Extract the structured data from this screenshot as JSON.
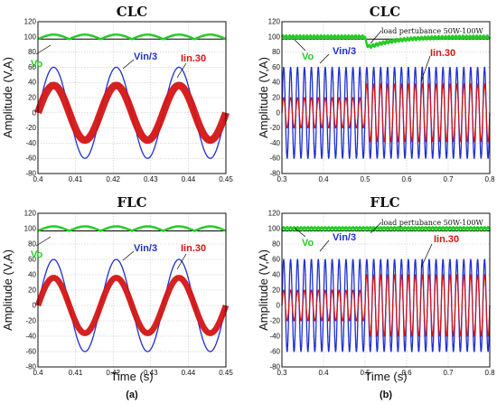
{
  "figure": {
    "caption_a": "(a)",
    "caption_b": "(b)"
  },
  "colors": {
    "vo": "#22cc22",
    "vin": "#1f30d0",
    "iin": "#d41515",
    "ref": "#000000"
  },
  "chart_data": [
    {
      "id": "a-clc",
      "type": "line",
      "title": "CLC",
      "xlabel": "",
      "ylabel": "Amplitude (V,A)",
      "xlim": [
        0.4,
        0.45
      ],
      "ylim": [
        -80,
        120
      ],
      "xticks": [
        "0.4",
        "0.41",
        "0.42",
        "0.43",
        "0.44",
        "0.45"
      ],
      "yticks": [
        "-80",
        "-60",
        "-40",
        "-20",
        "0",
        "20",
        "40",
        "60",
        "80",
        "100",
        "120"
      ],
      "grid": true,
      "series": [
        {
          "name": "Vo",
          "kind": "dc-ripple",
          "mean": 100,
          "ripple": 3,
          "freq_hz": 120
        },
        {
          "name": "Vin/3",
          "kind": "sine",
          "amplitude": 60,
          "freq_hz": 60
        },
        {
          "name": "Iin.30",
          "kind": "sine-band",
          "amplitude": 36,
          "band": 4,
          "freq_hz": 60
        }
      ],
      "annotations": {
        "vo": "Vo",
        "vin": "Vin/3",
        "iin": "Iin.30"
      }
    },
    {
      "id": "b-clc",
      "type": "line",
      "title": "CLC",
      "xlabel": "",
      "ylabel": "Amplitude (V,A)",
      "xlim": [
        0.3,
        0.8
      ],
      "ylim": [
        -80,
        120
      ],
      "xticks": [
        "0.3",
        "0.4",
        "0.5",
        "0.6",
        "0.7",
        "0.8"
      ],
      "yticks": [
        "-80",
        "-60",
        "-40",
        "-20",
        "0",
        "20",
        "40",
        "60",
        "80",
        "100",
        "120"
      ],
      "grid": true,
      "disturbance_time": 0.5,
      "series": [
        {
          "name": "Vo",
          "kind": "dc-dip",
          "mean": 100,
          "ripple": 2,
          "dip_to": 84,
          "recovery_s": 0.25
        },
        {
          "name": "Vin/3",
          "kind": "sine",
          "amplitude": 60,
          "freq_hz": 60
        },
        {
          "name": "Iin.30",
          "kind": "sine-step",
          "amplitude_before": 20,
          "amplitude_after": 38,
          "freq_hz": 60
        }
      ],
      "annotations": {
        "vo": "Vo",
        "vin": "Vin/3",
        "iin": "Iin.30",
        "load": "load pertubance 50W-100W"
      }
    },
    {
      "id": "a-flc",
      "type": "line",
      "title": "FLC",
      "xlabel": "Time (s)",
      "ylabel": "Amplitude (V,A)",
      "xlim": [
        0.4,
        0.45
      ],
      "ylim": [
        -80,
        120
      ],
      "xticks": [
        "0.4",
        "0.41",
        "0.42",
        "0.43",
        "0.44",
        "0.45"
      ],
      "yticks": [
        "-80",
        "-60",
        "-40",
        "-20",
        "0",
        "20",
        "40",
        "60",
        "80",
        "100",
        "120"
      ],
      "grid": true,
      "series": [
        {
          "name": "Vo",
          "kind": "dc-ripple",
          "mean": 100,
          "ripple": 3,
          "freq_hz": 120
        },
        {
          "name": "Vin/3",
          "kind": "sine",
          "amplitude": 60,
          "freq_hz": 60
        },
        {
          "name": "Iin.30",
          "kind": "sine-band",
          "amplitude": 36,
          "band": 3,
          "freq_hz": 60
        }
      ],
      "annotations": {
        "vo": "Vo",
        "vin": "Vin/3",
        "iin": "Iin.30"
      }
    },
    {
      "id": "b-flc",
      "type": "line",
      "title": "FLC",
      "xlabel": "Time (s)",
      "ylabel": "Amplitude (V,A)",
      "xlim": [
        0.3,
        0.8
      ],
      "ylim": [
        -80,
        120
      ],
      "xticks": [
        "0.3",
        "0.4",
        "0.5",
        "0.6",
        "0.7",
        "0.8"
      ],
      "yticks": [
        "-80",
        "-60",
        "-40",
        "-20",
        "0",
        "20",
        "40",
        "60",
        "80",
        "100",
        "120"
      ],
      "grid": true,
      "disturbance_time": 0.5,
      "series": [
        {
          "name": "Vo",
          "kind": "dc-ripple",
          "mean": 100,
          "ripple": 2,
          "freq_hz": 120
        },
        {
          "name": "Vin/3",
          "kind": "sine",
          "amplitude": 60,
          "freq_hz": 60
        },
        {
          "name": "Iin.30",
          "kind": "sine-step",
          "amplitude_before": 20,
          "amplitude_after": 40,
          "freq_hz": 60
        }
      ],
      "annotations": {
        "vo": "Vo",
        "vin": "Vin/3",
        "iin": "Iin.30",
        "load": "load pertubance 50W-100W"
      }
    }
  ]
}
